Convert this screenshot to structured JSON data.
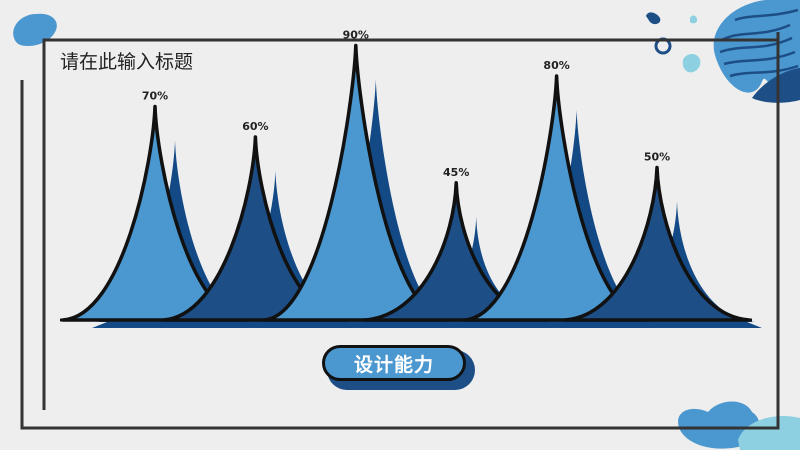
{
  "slide": {
    "title": "请在此输入标题",
    "caption": "设计能力"
  },
  "colors": {
    "background": "#eeeeee",
    "light_blue": "#4b97cf",
    "dark_blue": "#1d4e86",
    "navy": "#134a86",
    "outline": "#111111",
    "teal_light": "#8dd0e2"
  },
  "chart_data": {
    "type": "bar",
    "style": "peak-spikes",
    "categories": [
      "",
      "",
      "",
      "",
      "",
      ""
    ],
    "values": [
      70,
      60,
      90,
      45,
      80,
      50
    ],
    "labels": [
      "70%",
      "60%",
      "90%",
      "45%",
      "80%",
      "50%"
    ],
    "fills": [
      "#4b97cf",
      "#1d4e86",
      "#4b97cf",
      "#1d4e86",
      "#4b97cf",
      "#1d4e86"
    ],
    "ylim": [
      0,
      100
    ],
    "grid": false,
    "legend": "none"
  }
}
